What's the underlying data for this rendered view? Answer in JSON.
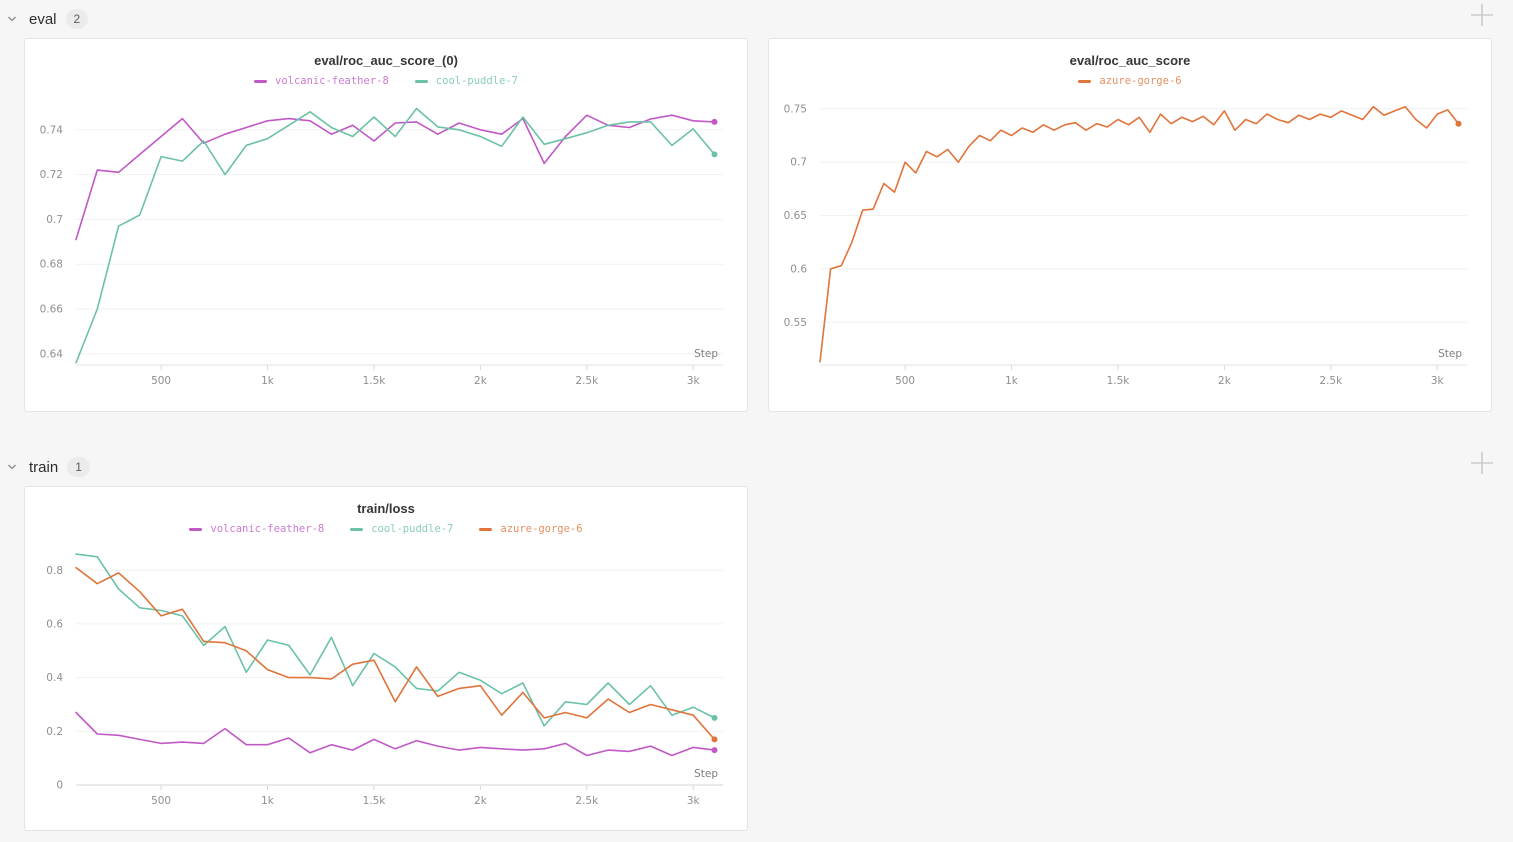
{
  "sections": [
    {
      "label": "eval",
      "count": "2"
    },
    {
      "label": "train",
      "count": "1"
    }
  ],
  "icons": {
    "collapse": "chevron-down-icon",
    "add_panel": "plus-icon"
  },
  "colors": {
    "run_volcanic_feather_8": "#C158C6",
    "run_cool_puddle_7": "#6BC2A5",
    "run_azure_gorge_6": "#E0743B",
    "gridline": "#f1f1f1",
    "axis_label": "#8f8f8f"
  },
  "chart_data": [
    {
      "type": "line",
      "title": "eval/roc_auc_score_(0)",
      "xlabel": "Step",
      "legend_position": "top",
      "grid": true,
      "xlim": [
        100,
        3140
      ],
      "ylim": [
        0.635,
        0.7515
      ],
      "x_ticks": [
        500,
        1000,
        1500,
        2000,
        2500,
        3000
      ],
      "x_tick_labels": [
        "500",
        "1k",
        "1.5k",
        "2k",
        "2.5k",
        "3k"
      ],
      "y_ticks": [
        0.64,
        0.66,
        0.68,
        0.7,
        0.72,
        0.74
      ],
      "y_tick_labels": [
        "0.64",
        "0.66",
        "0.68",
        "0.7",
        "0.72",
        "0.74"
      ],
      "x": [
        100,
        200,
        300,
        400,
        500,
        600,
        700,
        800,
        900,
        1000,
        1100,
        1200,
        1300,
        1400,
        1500,
        1600,
        1700,
        1800,
        1900,
        2000,
        2100,
        2200,
        2300,
        2400,
        2500,
        2600,
        2700,
        2800,
        2900,
        3000,
        3100
      ],
      "series": [
        {
          "name": "volcanic-feather-8",
          "color": "#C158C6",
          "values": [
            0.691,
            0.722,
            0.721,
            0.729,
            0.737,
            0.745,
            0.734,
            0.738,
            0.741,
            0.744,
            0.745,
            0.744,
            0.738,
            0.742,
            0.735,
            0.743,
            0.7435,
            0.738,
            0.743,
            0.74,
            0.738,
            0.745,
            0.725,
            0.737,
            0.7465,
            0.742,
            0.741,
            0.7448,
            0.7465,
            0.744,
            0.7435
          ]
        },
        {
          "name": "cool-puddle-7",
          "color": "#6BC2A5",
          "values": [
            0.636,
            0.66,
            0.697,
            0.702,
            0.728,
            0.726,
            0.735,
            0.72,
            0.733,
            0.736,
            0.742,
            0.748,
            0.741,
            0.737,
            0.7457,
            0.737,
            0.7495,
            0.7413,
            0.74,
            0.737,
            0.7326,
            0.7457,
            0.7335,
            0.736,
            0.7387,
            0.742,
            0.7435,
            0.7435,
            0.733,
            0.7404,
            0.729
          ]
        }
      ]
    },
    {
      "type": "line",
      "title": "eval/roc_auc_score",
      "xlabel": "Step",
      "legend_position": "top",
      "grid": true,
      "xlim": [
        100,
        3140
      ],
      "ylim": [
        0.51,
        0.7545
      ],
      "x_ticks": [
        500,
        1000,
        1500,
        2000,
        2500,
        3000
      ],
      "x_tick_labels": [
        "500",
        "1k",
        "1.5k",
        "2k",
        "2.5k",
        "3k"
      ],
      "y_ticks": [
        0.55,
        0.6,
        0.65,
        0.7,
        0.75
      ],
      "y_tick_labels": [
        "0.55",
        "0.6",
        "0.65",
        "0.7",
        "0.75"
      ],
      "x": [
        100,
        150,
        200,
        250,
        300,
        350,
        400,
        450,
        500,
        550,
        600,
        650,
        700,
        750,
        800,
        850,
        900,
        950,
        1000,
        1050,
        1100,
        1150,
        1200,
        1250,
        1300,
        1350,
        1400,
        1450,
        1500,
        1550,
        1600,
        1650,
        1700,
        1750,
        1800,
        1850,
        1900,
        1950,
        2000,
        2050,
        2100,
        2150,
        2200,
        2250,
        2300,
        2350,
        2400,
        2450,
        2500,
        2550,
        2600,
        2650,
        2700,
        2750,
        2800,
        2850,
        2900,
        2950,
        3000,
        3050,
        3100
      ],
      "series": [
        {
          "name": "azure-gorge-6",
          "color": "#E0743B",
          "values": [
            0.513,
            0.6,
            0.603,
            0.625,
            0.655,
            0.656,
            0.68,
            0.672,
            0.7,
            0.69,
            0.71,
            0.705,
            0.712,
            0.7,
            0.715,
            0.725,
            0.72,
            0.73,
            0.725,
            0.732,
            0.728,
            0.735,
            0.73,
            0.735,
            0.737,
            0.73,
            0.736,
            0.733,
            0.74,
            0.735,
            0.742,
            0.728,
            0.745,
            0.736,
            0.742,
            0.738,
            0.743,
            0.735,
            0.748,
            0.73,
            0.74,
            0.736,
            0.745,
            0.74,
            0.737,
            0.744,
            0.74,
            0.745,
            0.742,
            0.748,
            0.744,
            0.74,
            0.752,
            0.744,
            0.748,
            0.752,
            0.74,
            0.732,
            0.745,
            0.749,
            0.736
          ]
        }
      ]
    },
    {
      "type": "line",
      "title": "train/loss",
      "xlabel": "Step",
      "legend_position": "top",
      "grid": true,
      "zero_axis": true,
      "xlim": [
        100,
        3140
      ],
      "ylim": [
        0,
        0.868
      ],
      "x_ticks": [
        500,
        1000,
        1500,
        2000,
        2500,
        3000
      ],
      "x_tick_labels": [
        "500",
        "1k",
        "1.5k",
        "2k",
        "2.5k",
        "3k"
      ],
      "y_ticks": [
        0,
        0.2,
        0.4,
        0.6,
        0.8
      ],
      "y_tick_labels": [
        "0",
        "0.2",
        "0.4",
        "0.6",
        "0.8"
      ],
      "x": [
        100,
        200,
        300,
        400,
        500,
        600,
        700,
        800,
        900,
        1000,
        1100,
        1200,
        1300,
        1400,
        1500,
        1600,
        1700,
        1800,
        1900,
        2000,
        2100,
        2200,
        2300,
        2400,
        2500,
        2600,
        2700,
        2800,
        2900,
        3000,
        3100
      ],
      "series": [
        {
          "name": "volcanic-feather-8",
          "color": "#C158C6",
          "values": [
            0.27,
            0.19,
            0.185,
            0.17,
            0.155,
            0.16,
            0.155,
            0.21,
            0.15,
            0.15,
            0.175,
            0.12,
            0.15,
            0.13,
            0.17,
            0.135,
            0.165,
            0.145,
            0.13,
            0.14,
            0.135,
            0.13,
            0.135,
            0.155,
            0.11,
            0.13,
            0.125,
            0.145,
            0.11,
            0.14,
            0.13
          ]
        },
        {
          "name": "cool-puddle-7",
          "color": "#6BC2A5",
          "values": [
            0.86,
            0.85,
            0.73,
            0.66,
            0.65,
            0.63,
            0.52,
            0.59,
            0.42,
            0.54,
            0.52,
            0.41,
            0.55,
            0.37,
            0.49,
            0.44,
            0.36,
            0.35,
            0.42,
            0.39,
            0.34,
            0.38,
            0.22,
            0.31,
            0.3,
            0.38,
            0.3,
            0.37,
            0.26,
            0.29,
            0.25
          ]
        },
        {
          "name": "azure-gorge-6",
          "color": "#E0743B",
          "values": [
            0.81,
            0.75,
            0.79,
            0.72,
            0.63,
            0.655,
            0.535,
            0.53,
            0.5,
            0.43,
            0.4,
            0.4,
            0.395,
            0.45,
            0.465,
            0.31,
            0.44,
            0.33,
            0.36,
            0.37,
            0.26,
            0.345,
            0.25,
            0.27,
            0.25,
            0.32,
            0.27,
            0.3,
            0.28,
            0.26,
            0.17
          ]
        }
      ]
    }
  ]
}
